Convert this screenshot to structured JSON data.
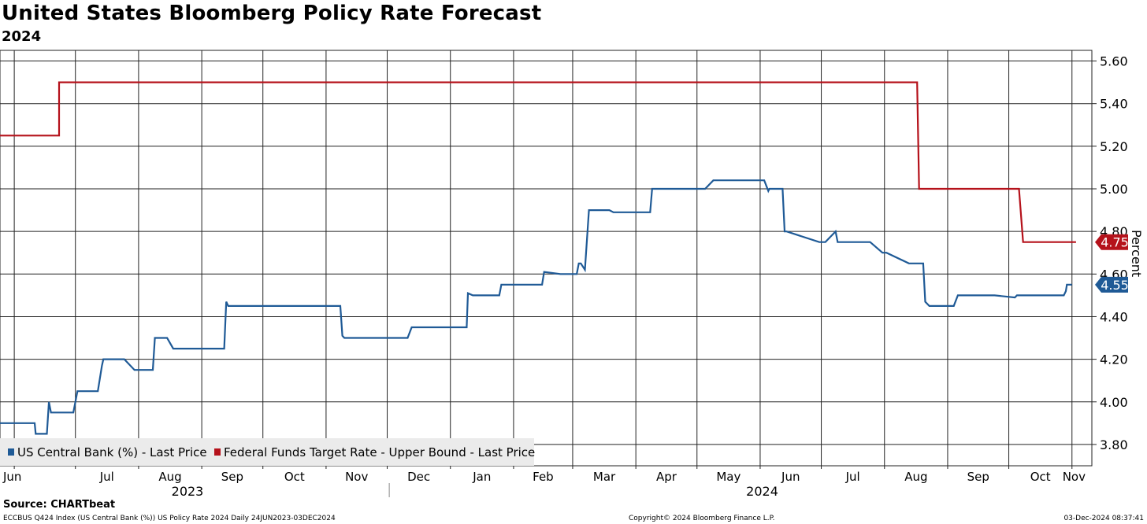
{
  "header": {
    "title": "United States Bloomberg Policy Rate Forecast",
    "subtitle": "2024"
  },
  "footer": {
    "source": "Source: CHARTbeat",
    "index_desc": "ECCBUS Q424 Index (US Central Bank (%)) US Policy Rate 2024  Daily 24JUN2023-03DEC2024",
    "copyright": "Copyright© 2024 Bloomberg Finance L.P.",
    "timestamp": "03-Dec-2024 08:37:41"
  },
  "chart_data": {
    "type": "line",
    "title": "United States Bloomberg Policy Rate Forecast",
    "subtitle": "2024",
    "ylabel": "Percent",
    "y_axis_side": "right",
    "ylim": [
      3.7,
      5.65
    ],
    "grid": true,
    "y_ticks": [
      3.8,
      4.0,
      4.2,
      4.4,
      4.6,
      4.8,
      5.0,
      5.2,
      5.4,
      5.6
    ],
    "y_tick_labels": [
      "3.80",
      "4.00",
      "4.20",
      "4.40",
      "4.60",
      "4.80",
      "5.00",
      "5.20",
      "5.40",
      "5.60"
    ],
    "x_unit": "days since 2023-06-24",
    "xlim": [
      0,
      528
    ],
    "month_ticks": [
      7,
      37,
      68,
      99,
      129,
      160,
      190,
      221,
      252,
      281,
      312,
      342,
      373,
      403,
      434,
      465,
      495,
      526
    ],
    "month_labels": [
      "Jun",
      "Jul",
      "Aug",
      "Sep",
      "Oct",
      "Nov",
      "Dec",
      "Jan",
      "Feb",
      "Mar",
      "Apr",
      "May",
      "Jun",
      "Jul",
      "Aug",
      "Sep",
      "Oct",
      "Nov"
    ],
    "year_labels": [
      {
        "label": "2023",
        "x": 92
      },
      {
        "label": "2024",
        "x": 374
      }
    ],
    "year_separator_x": 191,
    "legend_position": "bottom-left",
    "legend": [
      {
        "name": "US Central Bank (%) - Last Price",
        "color": "#1f5a96"
      },
      {
        "name": "Federal Funds Target Rate - Upper Bound - Last Price",
        "color": "#b5121b"
      }
    ],
    "last_value_labels": [
      {
        "series": "Federal Funds Target Rate - Upper Bound",
        "value": 4.75,
        "label": "4.75",
        "color": "#b5121b"
      },
      {
        "series": "US Central Bank",
        "value": 4.55,
        "label": "4.55",
        "color": "#1f5a96"
      }
    ],
    "series": [
      {
        "name": "US Central Bank (%) - Last Price",
        "color": "#1f5a96",
        "x": [
          0,
          17,
          17.5,
          23,
          24,
          25,
          26,
          36,
          38,
          48,
          50,
          50.7,
          60,
          61,
          66,
          68,
          75,
          76,
          82,
          85,
          91,
          92,
          110,
          111,
          112,
          167,
          168,
          169,
          200,
          202,
          227,
          229,
          229.6,
          232,
          245,
          246,
          265,
          266,
          267,
          275,
          276,
          283,
          284,
          285,
          287,
          289,
          299,
          301,
          319,
          320,
          346,
          350,
          375,
          377,
          377.5,
          381,
          384,
          385,
          386,
          402,
          405,
          409,
          410,
          411,
          427,
          433,
          435,
          446,
          453,
          454,
          456,
          468,
          470,
          488,
          498,
          499,
          500,
          522,
          523,
          523.5,
          526
        ],
        "y": [
          3.9,
          3.9,
          3.85,
          3.85,
          4.0,
          3.95,
          3.95,
          3.95,
          4.05,
          4.05,
          4.17,
          4.2,
          4.2,
          4.2,
          4.15,
          4.15,
          4.15,
          4.3,
          4.3,
          4.25,
          4.25,
          4.25,
          4.25,
          4.47,
          4.45,
          4.45,
          4.31,
          4.3,
          4.3,
          4.35,
          4.35,
          4.35,
          4.51,
          4.5,
          4.5,
          4.55,
          4.55,
          4.55,
          4.61,
          4.6,
          4.6,
          4.6,
          4.65,
          4.65,
          4.62,
          4.9,
          4.9,
          4.89,
          4.89,
          5.0,
          5.0,
          5.04,
          5.04,
          4.99,
          5.0,
          5.0,
          5.0,
          4.8,
          4.8,
          4.75,
          4.75,
          4.79,
          4.8,
          4.75,
          4.75,
          4.7,
          4.7,
          4.65,
          4.65,
          4.47,
          4.45,
          4.45,
          4.5,
          4.5,
          4.49,
          4.5,
          4.5,
          4.5,
          4.52,
          4.55,
          4.55
        ]
      },
      {
        "name": "Federal Funds Target Rate - Upper Bound - Last Price",
        "color": "#b5121b",
        "x": [
          0,
          29,
          29,
          450,
          451,
          500,
          502,
          528
        ],
        "y": [
          5.25,
          5.25,
          5.5,
          5.5,
          5.0,
          5.0,
          4.75,
          4.75
        ]
      }
    ]
  }
}
